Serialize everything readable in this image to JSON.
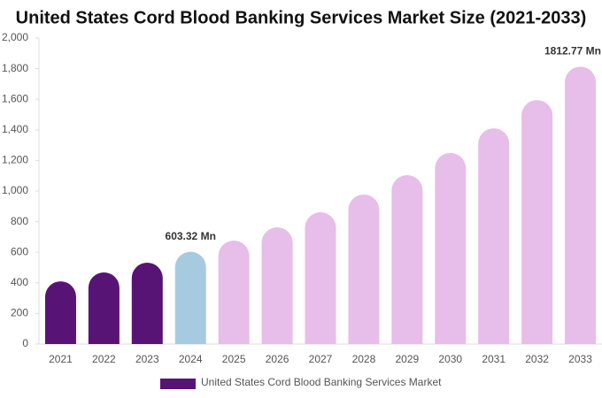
{
  "chart_data": {
    "type": "bar",
    "title": "United States Cord Blood Banking Services Market Size (2021-2033)",
    "categories": [
      "2021",
      "2022",
      "2023",
      "2024",
      "2025",
      "2026",
      "2027",
      "2028",
      "2029",
      "2030",
      "2031",
      "2032",
      "2033"
    ],
    "series": [
      {
        "name": "United States Cord Blood Banking Services Market",
        "color": "#581474",
        "colors": [
          "#581474",
          "#581474",
          "#581474",
          "#a6cbe0",
          "#e7bde9",
          "#e7bde9",
          "#e7bde9",
          "#e7bde9",
          "#e7bde9",
          "#e7bde9",
          "#e7bde9",
          "#e7bde9",
          "#e7bde9"
        ],
        "values": [
          410,
          468,
          532,
          603.32,
          676,
          763,
          861,
          977,
          1104,
          1249,
          1410,
          1595,
          1812.77
        ],
        "value_labels": [
          null,
          null,
          null,
          "603.32 Mn",
          null,
          null,
          null,
          null,
          null,
          null,
          null,
          null,
          "1812.77 Mn"
        ]
      }
    ],
    "ylim": [
      0,
      2000
    ],
    "yticks": [
      0,
      200,
      400,
      600,
      800,
      {
        "value": 1000,
        "label": "1,000"
      },
      {
        "value": 1200,
        "label": "1,200"
      },
      {
        "value": 1400,
        "label": "1,400"
      },
      {
        "value": 1600,
        "label": "1,600"
      },
      {
        "value": 1800,
        "label": "1,800"
      },
      {
        "value": 2000,
        "label": "2,000"
      }
    ],
    "grid": false
  }
}
